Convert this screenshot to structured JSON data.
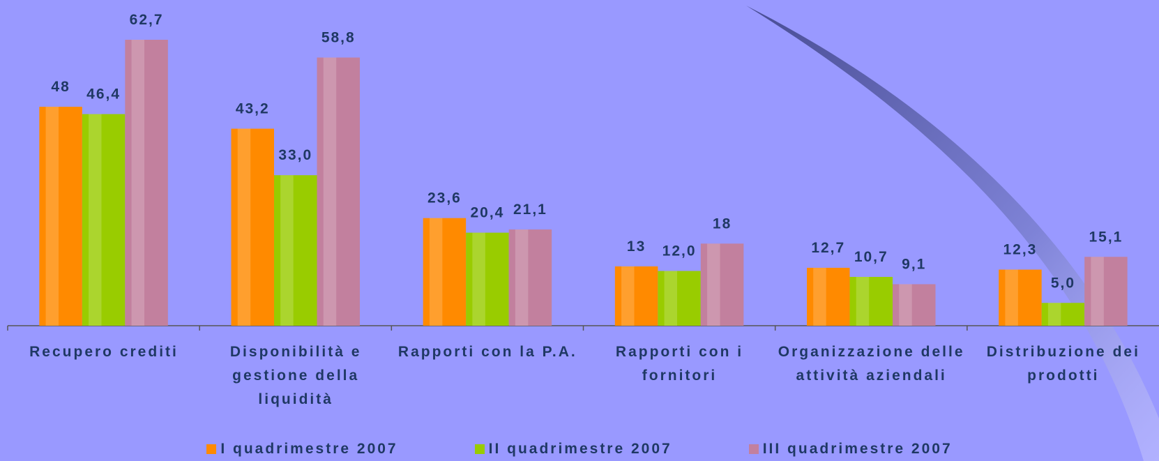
{
  "chart_data": {
    "type": "bar",
    "categories": [
      "Recupero crediti",
      "Disponibilità e gestione della liquidità",
      "Rapporti con la P.A.",
      "Rapporti con i fornitori",
      "Organizzazione delle attività aziendali",
      "Distribuzione dei prodotti"
    ],
    "series": [
      {
        "name": "I quadrimestre 2007",
        "color": "#ff8a00",
        "values": [
          48,
          43.2,
          23.6,
          13,
          12.7,
          12.3
        ],
        "value_labels": [
          "48",
          "43,2",
          "23,6",
          "13",
          "12,7",
          "12,3"
        ]
      },
      {
        "name": "II quadrimestre 2007",
        "color": "#99cc00",
        "values": [
          46.4,
          33.0,
          20.4,
          12.0,
          10.7,
          5.0
        ],
        "value_labels": [
          "46,4",
          "33,0",
          "20,4",
          "12,0",
          "10,7",
          "5,0"
        ]
      },
      {
        "name": "III quadrimestre 2007",
        "color": "#c2809e",
        "values": [
          62.7,
          58.8,
          21.1,
          18,
          9.1,
          15.1
        ],
        "value_labels": [
          "62,7",
          "58,8",
          "21,1",
          "18",
          "9,1",
          "15,1"
        ]
      }
    ],
    "legend": "bottom"
  }
}
